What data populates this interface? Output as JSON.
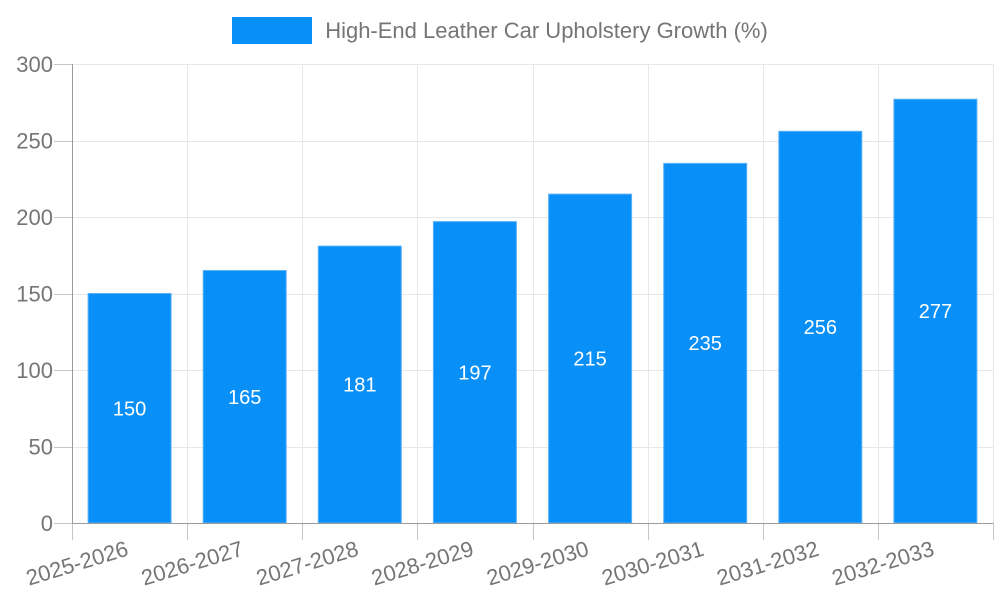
{
  "chart_data": {
    "type": "bar",
    "title": "High-End Leather Car Upholstery Growth (%)",
    "categories": [
      "2025-2026",
      "2026-2027",
      "2027-2028",
      "2028-2029",
      "2029-2030",
      "2030-2031",
      "2031-2032",
      "2032-2033"
    ],
    "series": [
      {
        "name": "High-End Leather Car Upholstery Growth (%)",
        "values": [
          150,
          165,
          181,
          197,
          215,
          235,
          256,
          277
        ]
      }
    ],
    "value_labels": [
      150,
      165,
      181,
      197,
      215,
      235,
      256,
      277
    ],
    "value_label_position": "inside-middle",
    "xlabel": "",
    "ylabel": "",
    "ylim": [
      0,
      300
    ],
    "yticks": [
      0,
      50,
      100,
      150,
      200,
      250,
      300
    ],
    "grid": true,
    "legend_position": "top-center",
    "x_tick_rotation_deg": -17,
    "colors": {
      "bar": "#0990f8",
      "bar_border": "#5db1f5",
      "grid_line": "#e7e7e7",
      "tick_line": "#c6c6c6",
      "axis_line": "#9b9b9b",
      "axis_text": "#757575",
      "value_text": "#ffffff",
      "background": "#ffffff"
    }
  }
}
